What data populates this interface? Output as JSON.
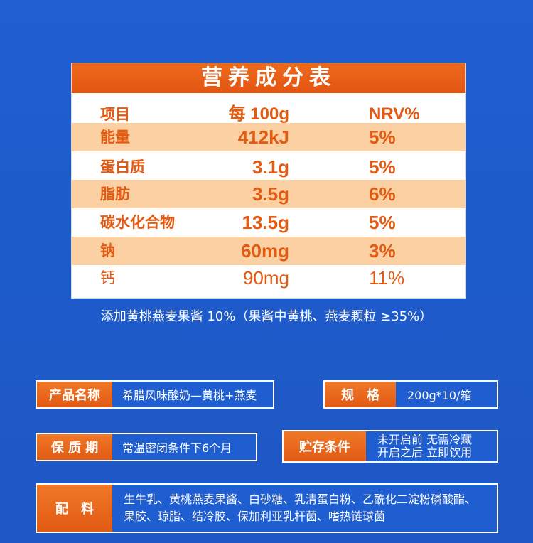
{
  "nutrition": {
    "title": "营养成分表",
    "header": {
      "item": "项目",
      "per": "每 100g",
      "nrv": "NRV%"
    },
    "rows": [
      {
        "item": "能量",
        "value": "412kJ",
        "nrv": "5%"
      },
      {
        "item": "蛋白质",
        "value": "3.1g",
        "nrv": "5%"
      },
      {
        "item": "脂肪",
        "value": "3.5g",
        "nrv": "6%"
      },
      {
        "item": "碳水化合物",
        "value": "13.5g",
        "nrv": "5%"
      },
      {
        "item": "钠",
        "value": "60mg",
        "nrv": "3%"
      },
      {
        "item": "钙",
        "value": "90mg",
        "nrv": "11%"
      }
    ]
  },
  "footnote": "添加黄桃燕麦果酱 10%（果酱中黄桃、燕麦颗粒 ≥35%）",
  "info": {
    "product_name_label": "产品名称",
    "product_name_value": "希腊风味酸奶—黄桃+燕麦",
    "spec_label": "规　格",
    "spec_value": "200g*10/箱",
    "shelf_life_label": "保 质 期",
    "shelf_life_value": "常温密闭条件下6个月",
    "storage_label": "贮存条件",
    "storage_line1": "未开启前 无需冷藏",
    "storage_line2": "开启之后 立即饮用",
    "ingredients_label": "配　料",
    "ingredients_line1": "生牛乳、黄桃燕麦果酱、白砂糖、乳清蛋白粉、乙酰化二淀粉磷酸酯、",
    "ingredients_line2": "果胶、琼脂、结冷胶、保加利亚乳杆菌、嗜热链球菌"
  },
  "colors": {
    "background": "#1f5fd0",
    "accent": "#e35a12",
    "row_shade": "#fbd0a3"
  }
}
